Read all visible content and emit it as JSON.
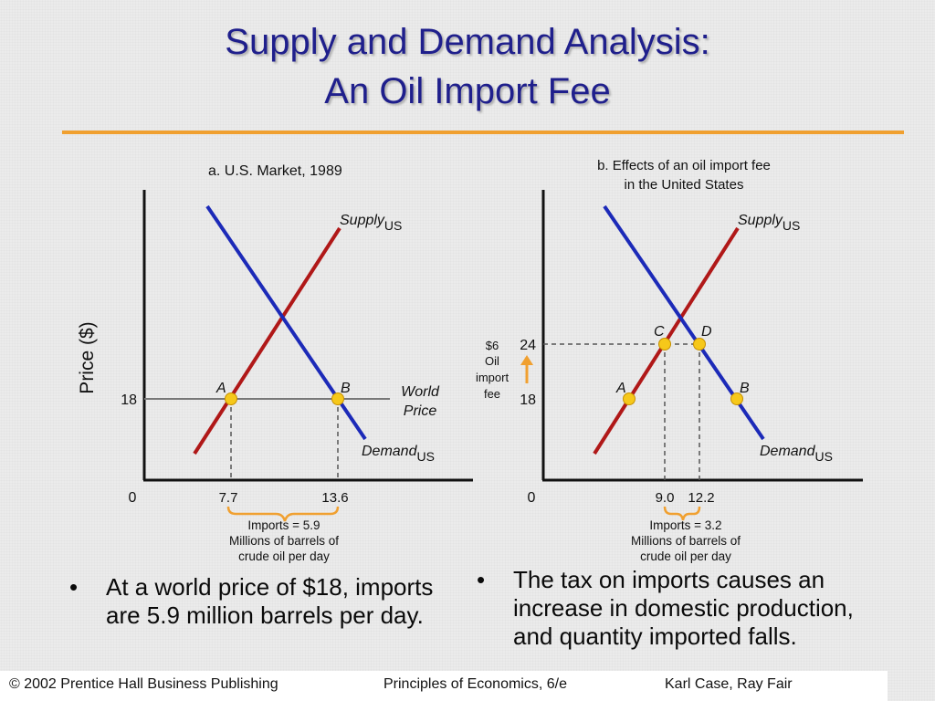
{
  "title": {
    "line1": "Supply and Demand Analysis:",
    "line2": "An Oil Import Fee"
  },
  "colors": {
    "title": "#1f1f8c",
    "rule": "#f0a030",
    "supply": "#b01818",
    "demand": "#1c2ab8",
    "point": "#f6c81a",
    "brace": "#f0a030"
  },
  "chart_data": [
    {
      "type": "line",
      "title": "a.  U.S. Market, 1989",
      "ylabel": "Price ($)",
      "origin_label": "0",
      "series": [
        {
          "name": "Supply",
          "subscript": "US"
        },
        {
          "name": "Demand",
          "subscript": "US"
        }
      ],
      "world_price": {
        "value": 18,
        "label_line1": "World",
        "label_line2": "Price"
      },
      "points": [
        {
          "label": "A",
          "x": 7.7,
          "y": 18
        },
        {
          "label": "B",
          "x": 13.6,
          "y": 18
        }
      ],
      "x_ticks": [
        "7.7",
        "13.6"
      ],
      "y_ticks": [
        "18"
      ],
      "imports_note": [
        "Imports = 5.9",
        "Millions of barrels of",
        "crude oil per day"
      ]
    },
    {
      "type": "line",
      "title_line1": "b.  Effects of an oil import fee",
      "title_line2": "in the United States",
      "origin_label": "0",
      "series": [
        {
          "name": "Supply",
          "subscript": "US"
        },
        {
          "name": "Demand",
          "subscript": "US"
        }
      ],
      "points": [
        {
          "label": "A",
          "y": 18
        },
        {
          "label": "B",
          "y": 18
        },
        {
          "label": "C",
          "x": 9.0,
          "y": 24
        },
        {
          "label": "D",
          "x": 12.2,
          "y": 24
        }
      ],
      "x_ticks": [
        "9.0",
        "12.2"
      ],
      "y_ticks": [
        "24",
        "18"
      ],
      "fee_note": [
        "$6",
        "Oil",
        "import",
        "fee"
      ],
      "imports_note": [
        "Imports = 3.2",
        "Millions of barrels of",
        "crude oil per day"
      ]
    }
  ],
  "bullets": {
    "left": {
      "symbol": "•",
      "text": "At a world price of $18, imports are 5.9 million barrels per day."
    },
    "right": {
      "symbol": "•",
      "text": "The tax on imports causes an increase in domestic production, and quantity imported falls."
    }
  },
  "footer": {
    "copyright": "© 2002 Prentice Hall Business Publishing",
    "book": "Principles of Economics, 6/e",
    "authors": "Karl Case, Ray Fair"
  }
}
